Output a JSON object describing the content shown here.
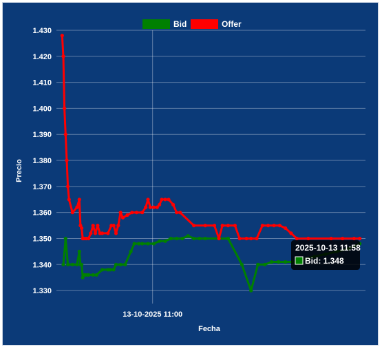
{
  "chart_data": {
    "type": "line",
    "xlabel": "Fecha",
    "ylabel": "Precio",
    "ylim": [
      1.325,
      1.43
    ],
    "yticks": [
      "1.330",
      "1.340",
      "1.350",
      "1.360",
      "1.370",
      "1.380",
      "1.390",
      "1.400",
      "1.410",
      "1.420",
      "1.430"
    ],
    "xtick_label": "13-10-2025 11:00",
    "grid": true,
    "legend_position": "top",
    "series": [
      {
        "name": "Bid",
        "color": "#008000",
        "values": [
          [
            10.86,
            1.34
          ],
          [
            10.88,
            1.35
          ],
          [
            10.9,
            1.34
          ],
          [
            10.94,
            1.34
          ],
          [
            10.98,
            1.34
          ],
          [
            11.0,
            1.345
          ],
          [
            11.01,
            1.34
          ],
          [
            11.02,
            1.34
          ],
          [
            11.03,
            1.335
          ],
          [
            11.04,
            1.336
          ],
          [
            11.06,
            1.336
          ],
          [
            11.08,
            1.336
          ],
          [
            11.12,
            1.336
          ],
          [
            11.15,
            1.336
          ],
          [
            11.2,
            1.338
          ],
          [
            11.25,
            1.338
          ],
          [
            11.27,
            1.338
          ],
          [
            11.3,
            1.338
          ],
          [
            11.32,
            1.34
          ],
          [
            11.36,
            1.34
          ],
          [
            11.4,
            1.34
          ],
          [
            11.45,
            1.345
          ],
          [
            11.48,
            1.348
          ],
          [
            11.52,
            1.348
          ],
          [
            11.55,
            1.348
          ],
          [
            11.6,
            1.348
          ],
          [
            11.65,
            1.348
          ],
          [
            11.7,
            1.349
          ],
          [
            11.75,
            1.349
          ],
          [
            11.8,
            1.35
          ],
          [
            11.85,
            1.35
          ],
          [
            11.9,
            1.35
          ],
          [
            11.95,
            1.351
          ],
          [
            12.0,
            1.35
          ],
          [
            12.05,
            1.35
          ],
          [
            12.1,
            1.35
          ],
          [
            12.3,
            1.35
          ],
          [
            12.42,
            1.34
          ],
          [
            12.5,
            1.33
          ],
          [
            12.56,
            1.34
          ],
          [
            12.62,
            1.34
          ],
          [
            12.68,
            1.341
          ],
          [
            12.74,
            1.341
          ],
          [
            12.8,
            1.341
          ],
          [
            12.86,
            1.341
          ],
          [
            12.9,
            1.341
          ],
          [
            12.95,
            1.342
          ],
          [
            13.05,
            1.343
          ],
          [
            13.15,
            1.344
          ],
          [
            13.25,
            1.345
          ],
          [
            13.35,
            1.346
          ],
          [
            13.4,
            1.347
          ],
          [
            13.45,
            1.348
          ]
        ]
      },
      {
        "name": "Offer",
        "color": "#ff0000",
        "values": [
          [
            10.85,
            1.428
          ],
          [
            10.86,
            1.42
          ],
          [
            10.87,
            1.4
          ],
          [
            10.88,
            1.39
          ],
          [
            10.89,
            1.38
          ],
          [
            10.9,
            1.37
          ],
          [
            10.91,
            1.365
          ],
          [
            10.94,
            1.36
          ],
          [
            10.98,
            1.362
          ],
          [
            11.0,
            1.365
          ],
          [
            11.01,
            1.355
          ],
          [
            11.02,
            1.354
          ],
          [
            11.03,
            1.35
          ],
          [
            11.04,
            1.35
          ],
          [
            11.06,
            1.35
          ],
          [
            11.08,
            1.35
          ],
          [
            11.1,
            1.352
          ],
          [
            11.12,
            1.355
          ],
          [
            11.14,
            1.352
          ],
          [
            11.16,
            1.355
          ],
          [
            11.18,
            1.352
          ],
          [
            11.2,
            1.352
          ],
          [
            11.25,
            1.352
          ],
          [
            11.28,
            1.355
          ],
          [
            11.3,
            1.355
          ],
          [
            11.32,
            1.352
          ],
          [
            11.34,
            1.355
          ],
          [
            11.36,
            1.36
          ],
          [
            11.38,
            1.358
          ],
          [
            11.42,
            1.359
          ],
          [
            11.46,
            1.36
          ],
          [
            11.5,
            1.36
          ],
          [
            11.55,
            1.36
          ],
          [
            11.58,
            1.362
          ],
          [
            11.6,
            1.365
          ],
          [
            11.62,
            1.362
          ],
          [
            11.65,
            1.362
          ],
          [
            11.68,
            1.362
          ],
          [
            11.7,
            1.363
          ],
          [
            11.72,
            1.365
          ],
          [
            11.75,
            1.365
          ],
          [
            11.78,
            1.365
          ],
          [
            11.82,
            1.363
          ],
          [
            11.85,
            1.36
          ],
          [
            11.88,
            1.36
          ],
          [
            12.0,
            1.355
          ],
          [
            12.1,
            1.355
          ],
          [
            12.18,
            1.355
          ],
          [
            12.22,
            1.35
          ],
          [
            12.25,
            1.355
          ],
          [
            12.3,
            1.355
          ],
          [
            12.36,
            1.355
          ],
          [
            12.4,
            1.35
          ],
          [
            12.46,
            1.35
          ],
          [
            12.5,
            1.35
          ],
          [
            12.55,
            1.35
          ],
          [
            12.6,
            1.355
          ],
          [
            12.65,
            1.355
          ],
          [
            12.7,
            1.355
          ],
          [
            12.75,
            1.355
          ],
          [
            12.8,
            1.354
          ],
          [
            12.85,
            1.352
          ],
          [
            12.9,
            1.35
          ],
          [
            13.0,
            1.35
          ],
          [
            13.2,
            1.35
          ],
          [
            13.3,
            1.35
          ],
          [
            13.4,
            1.35
          ],
          [
            13.45,
            1.35
          ]
        ]
      }
    ],
    "tooltip": {
      "title": "2025-10-13 11:58",
      "label": "Bid: 1.348",
      "swatch_color": "#008000"
    }
  }
}
